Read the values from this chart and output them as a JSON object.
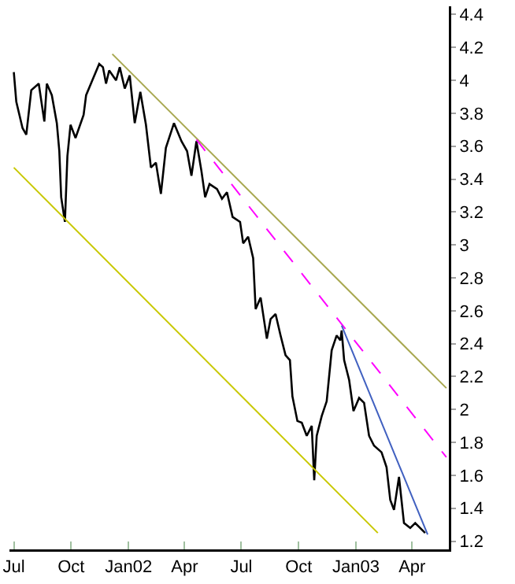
{
  "chart_data": {
    "type": "line",
    "xlim": [
      "2001-06-24",
      "2003-05-30"
    ],
    "ylim": [
      1.15,
      4.45
    ],
    "yticks": [
      1.2,
      1.4,
      1.6,
      1.8,
      2,
      2.2,
      2.4,
      2.6,
      2.8,
      3,
      3.2,
      3.4,
      3.6,
      3.8,
      4,
      4.2,
      4.4
    ],
    "xticks": [
      {
        "value": "2001-07-01",
        "label": "Jul"
      },
      {
        "value": "2001-10-01",
        "label": "Oct"
      },
      {
        "value": "2002-01-01",
        "label": "Jan02"
      },
      {
        "value": "2002-04-01",
        "label": "Apr"
      },
      {
        "value": "2002-07-01",
        "label": "Jul"
      },
      {
        "value": "2002-10-01",
        "label": "Oct"
      },
      {
        "value": "2003-01-01",
        "label": "Jan03"
      },
      {
        "value": "2003-04-01",
        "label": "Apr"
      }
    ],
    "grid": false,
    "marker": "none",
    "series": [
      {
        "color": "#000000",
        "line_style": "solid",
        "x": [
          "2001-07-01",
          "2001-07-05",
          "2001-07-15",
          "2001-07-21",
          "2001-07-29",
          "2001-08-10",
          "2001-08-19",
          "2001-08-23",
          "2001-08-31",
          "2001-09-08",
          "2001-09-12",
          "2001-09-15",
          "2001-09-21",
          "2001-09-25",
          "2001-09-30",
          "2001-10-08",
          "2001-10-21",
          "2001-10-25",
          "2001-11-04",
          "2001-11-15",
          "2001-11-21",
          "2001-11-26",
          "2001-12-01",
          "2001-12-12",
          "2001-12-18",
          "2001-12-26",
          "2002-01-03",
          "2002-01-11",
          "2002-01-20",
          "2002-01-29",
          "2002-02-06",
          "2002-02-14",
          "2002-02-22",
          "2002-03-02",
          "2002-03-15",
          "2002-03-27",
          "2002-04-05",
          "2002-04-12",
          "2002-04-20",
          "2002-04-28",
          "2002-05-04",
          "2002-05-11",
          "2002-05-23",
          "2002-05-31",
          "2002-06-08",
          "2002-06-17",
          "2002-06-29",
          "2002-07-04",
          "2002-07-12",
          "2002-07-20",
          "2002-07-24",
          "2002-08-01",
          "2002-08-11",
          "2002-08-17",
          "2002-08-25",
          "2002-09-02",
          "2002-09-10",
          "2002-09-17",
          "2002-09-21",
          "2002-09-29",
          "2002-10-06",
          "2002-10-14",
          "2002-10-22",
          "2002-10-26",
          "2002-10-30",
          "2002-11-07",
          "2002-11-15",
          "2002-11-23",
          "2002-12-01",
          "2002-12-07",
          "2002-12-09",
          "2002-12-13",
          "2002-12-21",
          "2002-12-28",
          "2003-01-06",
          "2003-01-14",
          "2003-01-22",
          "2003-01-30",
          "2003-02-11",
          "2003-02-19",
          "2003-02-25",
          "2003-03-03",
          "2003-03-11",
          "2003-03-19",
          "2003-03-29",
          "2003-04-06",
          "2003-04-14",
          "2003-04-22"
        ],
        "values": [
          4.05,
          3.87,
          3.71,
          3.67,
          3.94,
          3.98,
          3.75,
          3.98,
          3.91,
          3.74,
          3.57,
          3.29,
          3.14,
          3.54,
          3.73,
          3.65,
          3.79,
          3.91,
          4.0,
          4.1,
          4.08,
          3.98,
          4.06,
          4.0,
          4.08,
          3.95,
          4.03,
          3.74,
          3.93,
          3.73,
          3.47,
          3.5,
          3.31,
          3.59,
          3.74,
          3.63,
          3.57,
          3.42,
          3.63,
          3.45,
          3.29,
          3.37,
          3.34,
          3.28,
          3.32,
          3.17,
          3.14,
          3.01,
          3.05,
          2.92,
          2.61,
          2.68,
          2.43,
          2.55,
          2.58,
          2.45,
          2.33,
          2.3,
          2.08,
          1.93,
          1.92,
          1.84,
          1.9,
          1.57,
          1.84,
          1.96,
          2.05,
          2.36,
          2.45,
          2.42,
          2.48,
          2.3,
          2.18,
          1.99,
          2.07,
          2.04,
          1.84,
          1.78,
          1.74,
          1.65,
          1.45,
          1.39,
          1.59,
          1.31,
          1.28,
          1.31,
          1.28,
          1.25
        ]
      },
      {
        "type": "line",
        "color": "#a8a850",
        "line_style": "solid",
        "x": [
          "2001-12-06",
          "2003-05-26"
        ],
        "values": [
          4.16,
          2.13
        ]
      },
      {
        "type": "line",
        "color": "#ff00ff",
        "line_style": "dashed",
        "x": [
          "2002-04-20",
          "2003-05-26"
        ],
        "values": [
          3.64,
          1.71
        ]
      },
      {
        "type": "line",
        "color": "#c8c800",
        "line_style": "solid",
        "x": [
          "2001-07-01",
          "2003-02-05"
        ],
        "values": [
          3.47,
          1.25
        ]
      },
      {
        "type": "line",
        "color": "#4060c0",
        "line_style": "solid",
        "x": [
          "2002-12-09",
          "2003-04-26"
        ],
        "values": [
          2.51,
          1.24
        ]
      }
    ]
  }
}
